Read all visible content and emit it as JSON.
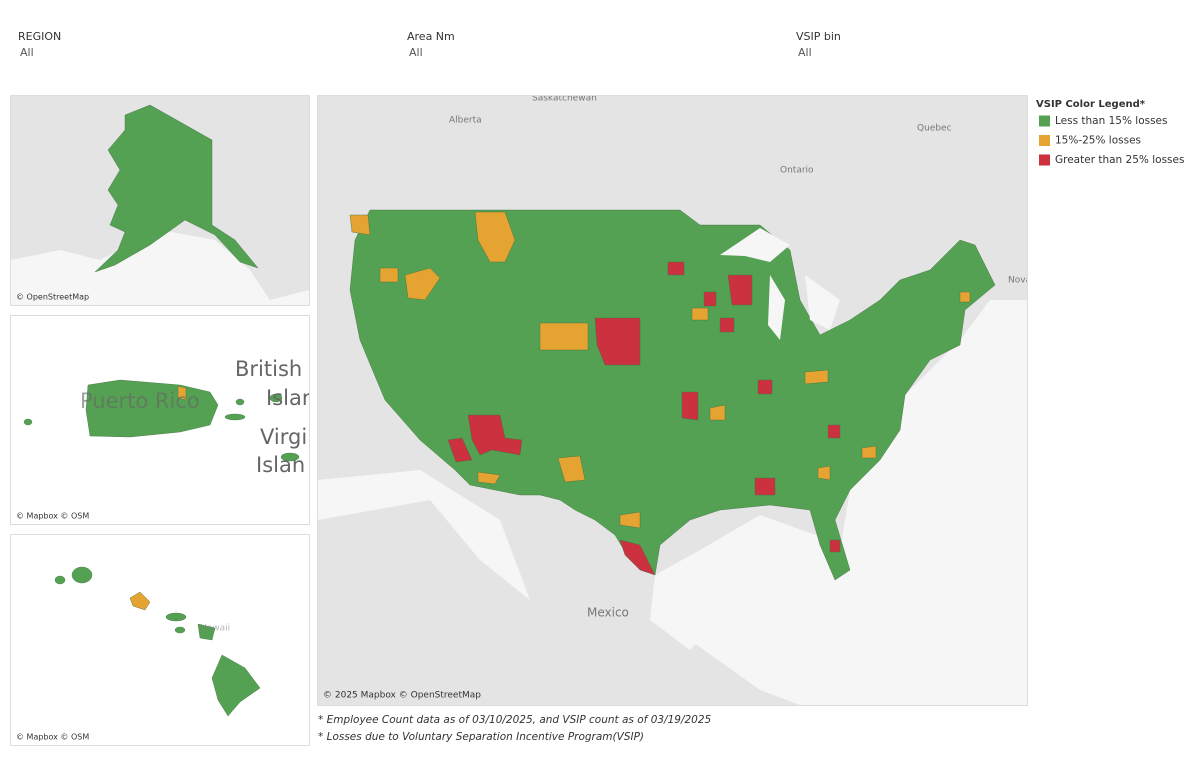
{
  "filters": [
    {
      "label": "REGION",
      "value": "All"
    },
    {
      "label": "Area Nm",
      "value": "All"
    },
    {
      "label": "VSIP bin",
      "value": "All"
    }
  ],
  "legend": {
    "title": "VSIP Color Legend*",
    "items": [
      {
        "label": "Less than 15% losses",
        "color": "#55a153"
      },
      {
        "label": "15%-25% losses",
        "color": "#e5a331"
      },
      {
        "label": "Greater than 25% losses",
        "color": "#cc3140"
      }
    ]
  },
  "maps": {
    "alaska": {
      "attribution": "© OpenStreetMap"
    },
    "caribbean": {
      "labels": [
        "Puerto Rico",
        "British V",
        "Islan",
        "Virgi",
        "Islan"
      ],
      "attribution": "© Mapbox © OSM"
    },
    "hawaii": {
      "labels": [
        "Hawaii"
      ],
      "attribution": "© Mapbox © OSM"
    },
    "main": {
      "labels": [
        "Saskatchewan",
        "Alberta",
        "Quebec",
        "Ontario",
        "Nova",
        "Mexico"
      ],
      "attribution": "© 2025 Mapbox © OpenStreetMap"
    }
  },
  "footnotes": [
    "* Employee Count data as of 03/10/2025, and VSIP count as of 03/19/2025",
    "* Losses due to Voluntary Separation Incentive Program(VSIP)"
  ]
}
